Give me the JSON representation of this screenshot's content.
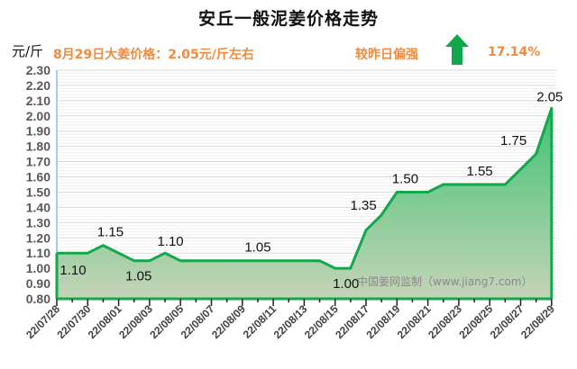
{
  "header": {
    "title": "安丘一般泥姜价格走势",
    "unit": "元/斤",
    "price_note": "8月29日大姜价格：2.05元/斤左右",
    "compare_label": "较昨日偏强",
    "change_pct": "17.14%",
    "trend_icon": "up-arrow-icon",
    "trend_color": "#0fa84b"
  },
  "watermark": "中国姜网监制（www.jiang7.com）",
  "colors": {
    "line": "#13a84c",
    "fill_top": "#4fc87e",
    "fill_bottom": "#c2d3b3",
    "accent_text": "#f08a3c",
    "grid": "#d9d9d9",
    "axis": "#5b9bd5"
  },
  "chart_data": {
    "type": "area",
    "title": "安丘一般泥姜价格走势",
    "xlabel": "",
    "ylabel": "元/斤",
    "ylim": [
      0.8,
      2.3
    ],
    "yticks": [
      "0.80",
      "0.90",
      "1.00",
      "1.10",
      "1.20",
      "1.30",
      "1.40",
      "1.50",
      "1.60",
      "1.70",
      "1.80",
      "1.90",
      "2.00",
      "2.10",
      "2.20",
      "2.30"
    ],
    "xtick_labels": [
      "22/07/28",
      "22/07/30",
      "22/08/01",
      "22/08/03",
      "22/08/05",
      "22/08/07",
      "22/08/09",
      "22/08/11",
      "22/08/13",
      "22/08/15",
      "22/08/17",
      "22/08/19",
      "22/08/21",
      "22/08/23",
      "22/08/25",
      "22/08/27",
      "22/08/29"
    ],
    "x": [
      "22/07/28",
      "22/07/29",
      "22/07/30",
      "22/07/31",
      "22/08/01",
      "22/08/02",
      "22/08/03",
      "22/08/04",
      "22/08/05",
      "22/08/06",
      "22/08/07",
      "22/08/08",
      "22/08/09",
      "22/08/10",
      "22/08/11",
      "22/08/12",
      "22/08/13",
      "22/08/14",
      "22/08/15",
      "22/08/16",
      "22/08/17",
      "22/08/18",
      "22/08/19",
      "22/08/20",
      "22/08/21",
      "22/08/22",
      "22/08/23",
      "22/08/24",
      "22/08/25",
      "22/08/26",
      "22/08/27",
      "22/08/28",
      "22/08/29"
    ],
    "series": [
      {
        "name": "安丘一般泥姜价格",
        "values": [
          1.1,
          1.1,
          1.1,
          1.15,
          1.1,
          1.05,
          1.05,
          1.1,
          1.05,
          1.05,
          1.05,
          1.05,
          1.05,
          1.05,
          1.05,
          1.05,
          1.05,
          1.05,
          1.0,
          1.0,
          1.25,
          1.35,
          1.5,
          1.5,
          1.5,
          1.55,
          1.55,
          1.55,
          1.55,
          1.55,
          1.65,
          1.75,
          2.05
        ]
      }
    ],
    "data_labels": [
      {
        "x": "22/07/28",
        "text": "1.10"
      },
      {
        "x": "22/07/31",
        "text": "1.15"
      },
      {
        "x": "22/08/02",
        "text": "1.05"
      },
      {
        "x": "22/08/04",
        "text": "1.10"
      },
      {
        "x": "22/08/10",
        "text": "1.05"
      },
      {
        "x": "22/08/15",
        "text": "1.00"
      },
      {
        "x": "22/08/18",
        "text": "1.35"
      },
      {
        "x": "22/08/20",
        "text": "1.50"
      },
      {
        "x": "22/08/24",
        "text": "1.55"
      },
      {
        "x": "22/08/28",
        "text": "1.75"
      },
      {
        "x": "22/08/29",
        "text": "2.05"
      }
    ],
    "grid": true,
    "legend": "none"
  }
}
